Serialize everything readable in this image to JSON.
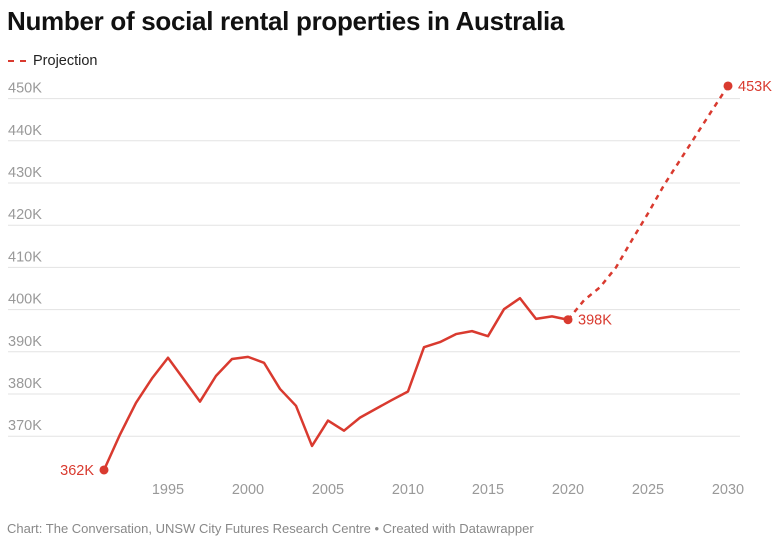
{
  "chart_data": {
    "type": "line",
    "title": "Number of social rental properties in Australia",
    "legend": {
      "entries": [
        "Projection"
      ],
      "placement": "top-left"
    },
    "color": "#d93a2f",
    "grid": true,
    "xlim": [
      1991,
      2030
    ],
    "ylim": [
      362,
      453
    ],
    "x_ticks": [
      1995,
      2000,
      2005,
      2010,
      2015,
      2020,
      2025,
      2030
    ],
    "y_ticks": [
      370,
      380,
      390,
      400,
      410,
      420,
      430,
      440,
      450
    ],
    "y_tick_labels": [
      "370K",
      "380K",
      "390K",
      "400K",
      "410K",
      "420K",
      "430K",
      "440K",
      "450K"
    ],
    "series": [
      {
        "style": "solid",
        "x": [
          1991,
          1992,
          1993,
          1994,
          1995,
          1996,
          1997,
          1998,
          1999,
          2000,
          2001,
          2002,
          2003,
          2004,
          2005,
          2006,
          2007,
          2008,
          2009,
          2010,
          2011,
          2012,
          2013,
          2014,
          2015,
          2016,
          2017,
          2018,
          2019,
          2020
        ],
        "y": [
          362,
          370.4,
          377.9,
          383.7,
          388.6,
          383.4,
          378.2,
          384.3,
          388.3,
          388.8,
          387.4,
          381.2,
          377.2,
          367.7,
          373.7,
          371.3,
          374.4,
          376.5,
          378.6,
          380.6,
          391.1,
          392.3,
          394.2,
          394.9,
          393.7,
          400.1,
          402.7,
          397.8,
          398.4,
          397.6
        ]
      },
      {
        "name": "Projection",
        "style": "dashed",
        "x": [
          2020,
          2021,
          2022,
          2023,
          2024,
          2025,
          2026,
          2027,
          2028,
          2029,
          2030
        ],
        "y": [
          397.6,
          402.2,
          405.3,
          410.0,
          416.5,
          422.8,
          429.5,
          435.4,
          441.3,
          447.2,
          453
        ]
      }
    ],
    "annotations": [
      {
        "x": 1991,
        "y": 362,
        "text": "362K"
      },
      {
        "x": 2020,
        "y": 397.6,
        "text": "398K"
      },
      {
        "x": 2030,
        "y": 453,
        "text": "453K"
      }
    ]
  },
  "footer": "Chart: The Conversation, UNSW City Futures Research Centre • Created with Datawrapper"
}
